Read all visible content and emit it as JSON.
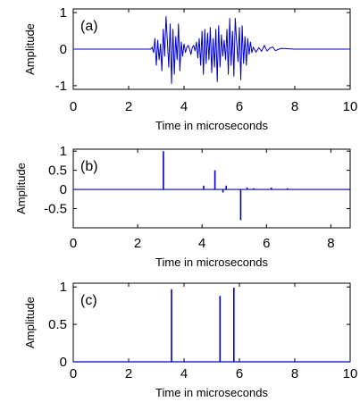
{
  "chart_data": [
    {
      "type": "line",
      "panel_label": "(a)",
      "xlabel": "Time in microseconds",
      "ylabel": "Amplitude",
      "xlim": [
        0,
        10
      ],
      "ylim": [
        -1.1,
        1.1
      ],
      "xticks": [
        0,
        2,
        4,
        6,
        8,
        10
      ],
      "yticks": [
        -1,
        0,
        1
      ],
      "x_tick_labels": [
        "0",
        "2",
        "4",
        "6",
        "8",
        "10"
      ],
      "y_tick_labels": [
        "-1",
        "0",
        "1"
      ],
      "grid": false,
      "color": "#0000cc",
      "series": [
        {
          "x": [
            0,
            2.8,
            2.85,
            2.9,
            2.95,
            3.0,
            3.05,
            3.1,
            3.15,
            3.2,
            3.25,
            3.3,
            3.35,
            3.4,
            3.45,
            3.5,
            3.55,
            3.6,
            3.65,
            3.7,
            3.75,
            3.8,
            3.85,
            3.9,
            3.95,
            4.0,
            4.05,
            4.1,
            4.15,
            4.2,
            4.25,
            4.3,
            4.35,
            4.4,
            4.45,
            4.5,
            4.55,
            4.6,
            4.65,
            4.7,
            4.75,
            4.8,
            4.85,
            4.9,
            4.95,
            5.0,
            5.05,
            5.1,
            5.15,
            5.2,
            5.25,
            5.3,
            5.35,
            5.4,
            5.45,
            5.5,
            5.55,
            5.6,
            5.65,
            5.7,
            5.75,
            5.8,
            5.85,
            5.9,
            5.95,
            6.0,
            6.05,
            6.1,
            6.15,
            6.2,
            6.25,
            6.3,
            6.35,
            6.4,
            6.45,
            6.5,
            6.6,
            6.7,
            6.8,
            6.9,
            7.0,
            7.1,
            7.2,
            7.3,
            7.5,
            8.0,
            10.0
          ],
          "y": [
            0,
            0,
            0.05,
            -0.1,
            0.3,
            -0.45,
            0.25,
            -0.3,
            0.15,
            -0.6,
            0.55,
            -0.2,
            0.9,
            0.2,
            -0.5,
            0.7,
            -0.95,
            0.55,
            -0.7,
            0.35,
            -0.3,
            0.7,
            -0.6,
            0.2,
            -0.2,
            0.15,
            -0.1,
            0.05,
            0.1,
            0.0,
            -0.15,
            0.05,
            0.1,
            -0.05,
            0.2,
            -0.25,
            0.3,
            -0.45,
            0.5,
            -0.7,
            0.55,
            -0.4,
            0.45,
            -0.3,
            0.6,
            -0.65,
            0.3,
            -0.5,
            0.55,
            -0.9,
            0.65,
            -0.5,
            0.4,
            -0.2,
            0.25,
            -0.3,
            0.55,
            -0.7,
            0.85,
            -0.45,
            0.5,
            -0.75,
            0.85,
            0.2,
            -0.35,
            0.6,
            -0.85,
            0.65,
            -0.4,
            0.35,
            -0.45,
            0.3,
            -0.15,
            0.2,
            -0.1,
            0.05,
            -0.08,
            0.04,
            -0.06,
            0.1,
            -0.05,
            0.03,
            0.06,
            -0.04,
            0.02,
            0,
            0
          ]
        }
      ]
    },
    {
      "type": "stem",
      "panel_label": "(b)",
      "xlabel": "Time in microseconds",
      "ylabel": "Amplitude",
      "xlim": [
        0,
        8.6
      ],
      "ylim": [
        -1.0,
        1.05
      ],
      "xticks": [
        0,
        2,
        4,
        6,
        8
      ],
      "yticks": [
        -0.5,
        0,
        0.5,
        1
      ],
      "x_tick_labels": [
        "0",
        "2",
        "4",
        "6",
        "8"
      ],
      "y_tick_labels": [
        "-0.5",
        "0",
        "0.5",
        "1"
      ],
      "grid": false,
      "color": "#0000cc",
      "series": [
        {
          "x": [
            2.8,
            4.05,
            4.4,
            4.65,
            4.75,
            5.2,
            5.4,
            5.6,
            6.15,
            6.65
          ],
          "y": [
            1.0,
            0.1,
            0.5,
            -0.08,
            0.1,
            -0.8,
            0.05,
            0.03,
            0.05,
            0.03
          ]
        }
      ]
    },
    {
      "type": "stem",
      "panel_label": "(c)",
      "xlabel": "Time in microseconds",
      "ylabel": "Amplitude",
      "xlim": [
        0,
        10
      ],
      "ylim": [
        0,
        1.05
      ],
      "xticks": [
        0,
        2,
        4,
        6,
        8,
        10
      ],
      "yticks": [
        0,
        0.5,
        1
      ],
      "x_tick_labels": [
        "0",
        "2",
        "4",
        "6",
        "8",
        "10"
      ],
      "y_tick_labels": [
        "0",
        "0.5",
        "1"
      ],
      "grid": false,
      "color": "#0000cc",
      "series": [
        {
          "x": [
            3.55,
            5.3,
            5.8
          ],
          "y": [
            0.97,
            0.88,
            0.99
          ]
        }
      ]
    }
  ]
}
